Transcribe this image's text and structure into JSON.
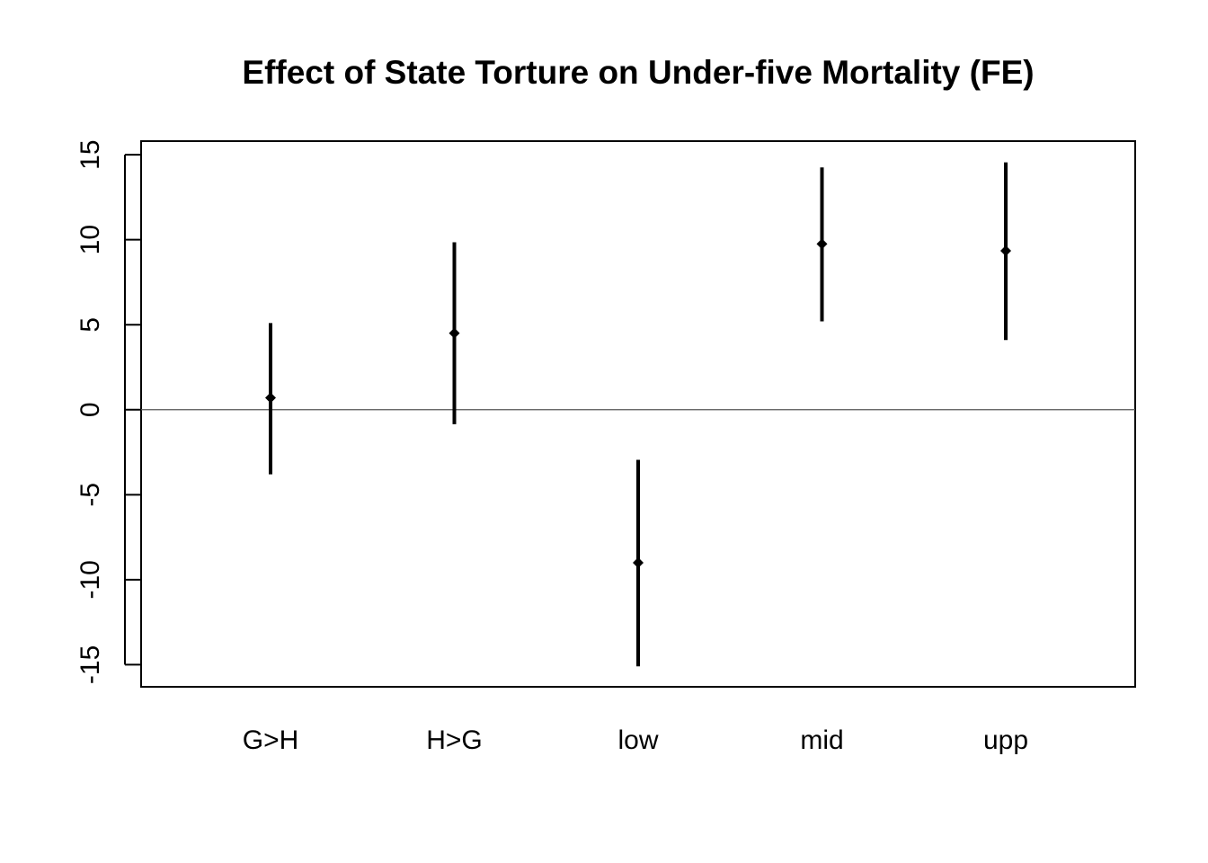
{
  "chart_data": {
    "type": "errorbar",
    "title": "Effect of State Torture on Under-five Mortality (FE)",
    "xlabel": "",
    "ylabel": "",
    "categories": [
      "G>H",
      "H>G",
      "low",
      "mid",
      "upp"
    ],
    "estimates": [
      0.7,
      4.5,
      -9.0,
      9.75,
      9.35
    ],
    "lower": [
      -3.8,
      -0.85,
      -15.1,
      5.2,
      4.1
    ],
    "upper": [
      5.1,
      9.85,
      -2.95,
      14.25,
      14.55
    ],
    "ylim": [
      -16.3,
      15.8
    ],
    "yticks": [
      -15,
      -10,
      -5,
      0,
      5,
      10,
      15
    ],
    "ytick_labels": [
      "-15",
      "-10",
      "-5",
      "0",
      "5",
      "10",
      "15"
    ],
    "reference_line": 0,
    "grid": false,
    "legend": "none",
    "colors": {
      "marks": "#000000",
      "reference": "#555555",
      "frame": "#000000"
    }
  }
}
